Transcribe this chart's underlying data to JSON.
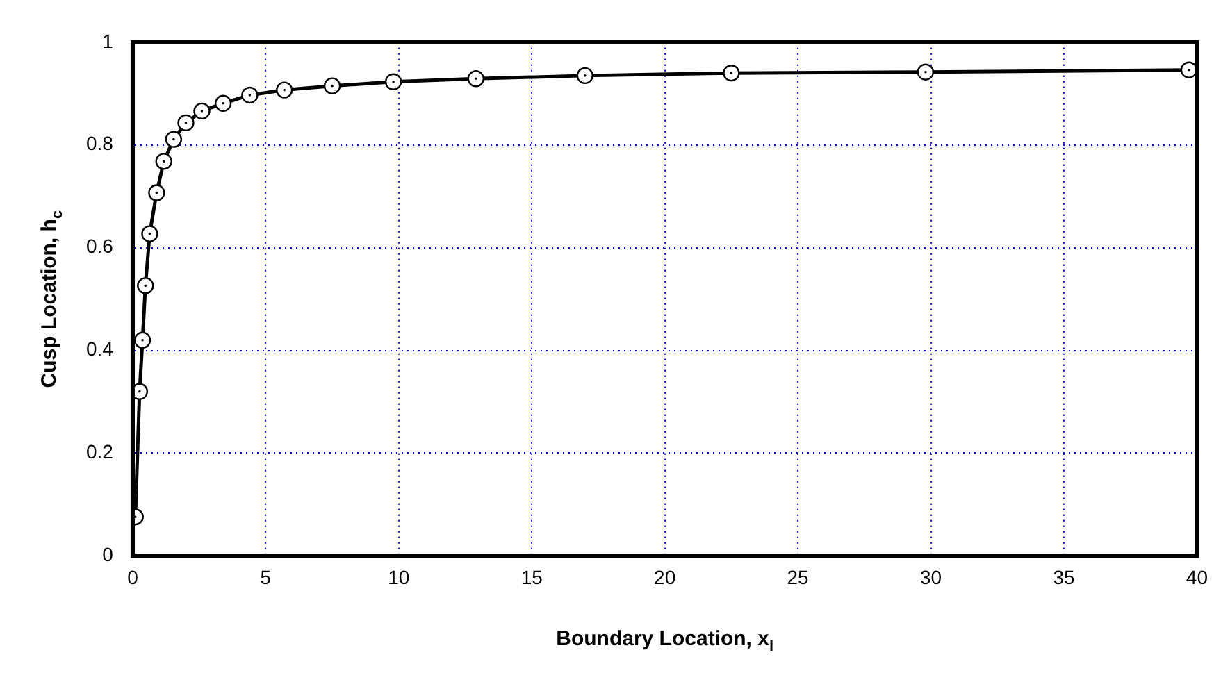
{
  "chart_data": {
    "type": "line",
    "xlabel": "Boundary Location, x$_{l}$",
    "ylabel": "Cusp Location, h$_{c}$",
    "series": [
      {
        "color": "#000000",
        "x": [
          0.1,
          0.26,
          0.37,
          0.48,
          0.64,
          0.9,
          1.17,
          1.54,
          2.0,
          2.6,
          3.4,
          4.4,
          5.7,
          7.5,
          9.8,
          12.9,
          17.0,
          22.5,
          29.8,
          39.7
        ],
        "values": [
          0.076,
          0.32,
          0.42,
          0.526,
          0.627,
          0.707,
          0.768,
          0.811,
          0.843,
          0.866,
          0.881,
          0.897,
          0.907,
          0.915,
          0.923,
          0.929,
          0.935,
          0.94,
          0.942,
          0.946
        ]
      }
    ],
    "xlim": [
      0,
      40
    ],
    "xticks": [
      0,
      5,
      10,
      15,
      20,
      25,
      30,
      35,
      40
    ],
    "ylim": [
      0,
      1
    ],
    "yticks": [
      0,
      0.2,
      0.4,
      0.6,
      0.8,
      1
    ],
    "grid": true,
    "marker": "circle",
    "line_style": "solid",
    "legend": false
  }
}
